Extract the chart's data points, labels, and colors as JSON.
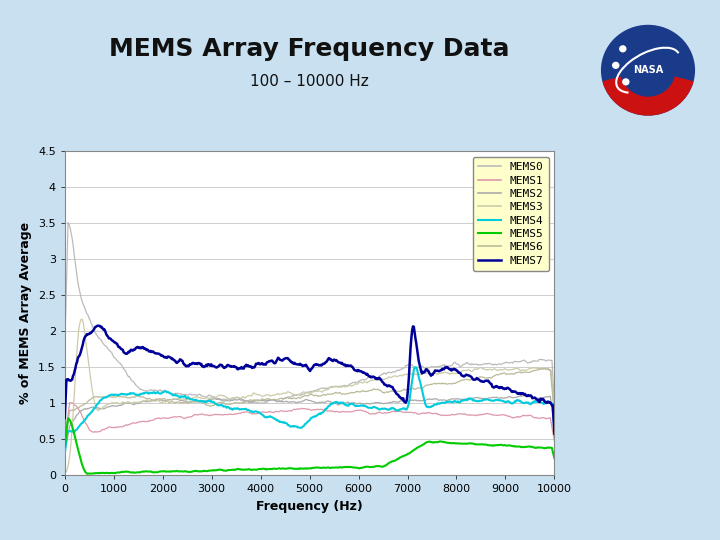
{
  "title": "MEMS Array Frequency Data",
  "subtitle": "100 – 10000 Hz",
  "xlabel": "Frequency (Hz)",
  "ylabel": "% of MEMS Array Average",
  "xlim": [
    0,
    10000
  ],
  "ylim": [
    0,
    4.5
  ],
  "yticks": [
    0,
    0.5,
    1,
    1.5,
    2,
    2.5,
    3,
    3.5,
    4,
    4.5
  ],
  "xticks": [
    0,
    1000,
    2000,
    3000,
    4000,
    5000,
    6000,
    7000,
    8000,
    9000,
    10000
  ],
  "bg_color": "#c8e0f0",
  "plot_bg_color": "#ffffff",
  "legend_bg": "#ffffcc",
  "series": [
    {
      "name": "MEMS0",
      "color": "#bbbbbb",
      "lw": 0.9,
      "zorder": 2
    },
    {
      "name": "MEMS1",
      "color": "#dd99aa",
      "lw": 0.9,
      "zorder": 2
    },
    {
      "name": "MEMS2",
      "color": "#aaaaaa",
      "lw": 0.9,
      "zorder": 2
    },
    {
      "name": "MEMS3",
      "color": "#ccccaa",
      "lw": 0.9,
      "zorder": 2
    },
    {
      "name": "MEMS4",
      "color": "#00ccdd",
      "lw": 1.5,
      "zorder": 3
    },
    {
      "name": "MEMS5",
      "color": "#00cc00",
      "lw": 1.5,
      "zorder": 3
    },
    {
      "name": "MEMS6",
      "color": "#bbbb99",
      "lw": 0.9,
      "zorder": 2
    },
    {
      "name": "MEMS7",
      "color": "#000099",
      "lw": 1.8,
      "zorder": 4
    }
  ],
  "title_fontsize": 18,
  "subtitle_fontsize": 11,
  "axis_label_fontsize": 9,
  "tick_fontsize": 8,
  "legend_fontsize": 8
}
